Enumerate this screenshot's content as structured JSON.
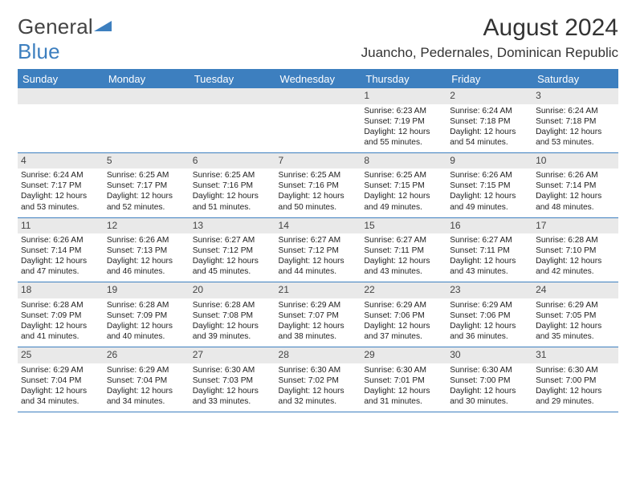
{
  "logo": {
    "text1": "General",
    "text2": "Blue",
    "mark_color": "#3d7fbf"
  },
  "title": "August 2024",
  "location": "Juancho, Pedernales, Dominican Republic",
  "colors": {
    "header_bg": "#3d7fbf",
    "header_fg": "#ffffff",
    "daynum_bg": "#e9e9e9",
    "border": "#3d7fbf",
    "text": "#222222",
    "background": "#ffffff"
  },
  "typography": {
    "title_fontsize": 30,
    "location_fontsize": 17,
    "dow_fontsize": 13,
    "daynum_fontsize": 12,
    "info_fontsize": 10.2,
    "logo_fontsize": 26
  },
  "dow": [
    "Sunday",
    "Monday",
    "Tuesday",
    "Wednesday",
    "Thursday",
    "Friday",
    "Saturday"
  ],
  "weeks": [
    [
      null,
      null,
      null,
      null,
      {
        "n": "1",
        "sunrise": "6:23 AM",
        "sunset": "7:19 PM",
        "daylight": "12 hours and 55 minutes."
      },
      {
        "n": "2",
        "sunrise": "6:24 AM",
        "sunset": "7:18 PM",
        "daylight": "12 hours and 54 minutes."
      },
      {
        "n": "3",
        "sunrise": "6:24 AM",
        "sunset": "7:18 PM",
        "daylight": "12 hours and 53 minutes."
      }
    ],
    [
      {
        "n": "4",
        "sunrise": "6:24 AM",
        "sunset": "7:17 PM",
        "daylight": "12 hours and 53 minutes."
      },
      {
        "n": "5",
        "sunrise": "6:25 AM",
        "sunset": "7:17 PM",
        "daylight": "12 hours and 52 minutes."
      },
      {
        "n": "6",
        "sunrise": "6:25 AM",
        "sunset": "7:16 PM",
        "daylight": "12 hours and 51 minutes."
      },
      {
        "n": "7",
        "sunrise": "6:25 AM",
        "sunset": "7:16 PM",
        "daylight": "12 hours and 50 minutes."
      },
      {
        "n": "8",
        "sunrise": "6:25 AM",
        "sunset": "7:15 PM",
        "daylight": "12 hours and 49 minutes."
      },
      {
        "n": "9",
        "sunrise": "6:26 AM",
        "sunset": "7:15 PM",
        "daylight": "12 hours and 49 minutes."
      },
      {
        "n": "10",
        "sunrise": "6:26 AM",
        "sunset": "7:14 PM",
        "daylight": "12 hours and 48 minutes."
      }
    ],
    [
      {
        "n": "11",
        "sunrise": "6:26 AM",
        "sunset": "7:14 PM",
        "daylight": "12 hours and 47 minutes."
      },
      {
        "n": "12",
        "sunrise": "6:26 AM",
        "sunset": "7:13 PM",
        "daylight": "12 hours and 46 minutes."
      },
      {
        "n": "13",
        "sunrise": "6:27 AM",
        "sunset": "7:12 PM",
        "daylight": "12 hours and 45 minutes."
      },
      {
        "n": "14",
        "sunrise": "6:27 AM",
        "sunset": "7:12 PM",
        "daylight": "12 hours and 44 minutes."
      },
      {
        "n": "15",
        "sunrise": "6:27 AM",
        "sunset": "7:11 PM",
        "daylight": "12 hours and 43 minutes."
      },
      {
        "n": "16",
        "sunrise": "6:27 AM",
        "sunset": "7:11 PM",
        "daylight": "12 hours and 43 minutes."
      },
      {
        "n": "17",
        "sunrise": "6:28 AM",
        "sunset": "7:10 PM",
        "daylight": "12 hours and 42 minutes."
      }
    ],
    [
      {
        "n": "18",
        "sunrise": "6:28 AM",
        "sunset": "7:09 PM",
        "daylight": "12 hours and 41 minutes."
      },
      {
        "n": "19",
        "sunrise": "6:28 AM",
        "sunset": "7:09 PM",
        "daylight": "12 hours and 40 minutes."
      },
      {
        "n": "20",
        "sunrise": "6:28 AM",
        "sunset": "7:08 PM",
        "daylight": "12 hours and 39 minutes."
      },
      {
        "n": "21",
        "sunrise": "6:29 AM",
        "sunset": "7:07 PM",
        "daylight": "12 hours and 38 minutes."
      },
      {
        "n": "22",
        "sunrise": "6:29 AM",
        "sunset": "7:06 PM",
        "daylight": "12 hours and 37 minutes."
      },
      {
        "n": "23",
        "sunrise": "6:29 AM",
        "sunset": "7:06 PM",
        "daylight": "12 hours and 36 minutes."
      },
      {
        "n": "24",
        "sunrise": "6:29 AM",
        "sunset": "7:05 PM",
        "daylight": "12 hours and 35 minutes."
      }
    ],
    [
      {
        "n": "25",
        "sunrise": "6:29 AM",
        "sunset": "7:04 PM",
        "daylight": "12 hours and 34 minutes."
      },
      {
        "n": "26",
        "sunrise": "6:29 AM",
        "sunset": "7:04 PM",
        "daylight": "12 hours and 34 minutes."
      },
      {
        "n": "27",
        "sunrise": "6:30 AM",
        "sunset": "7:03 PM",
        "daylight": "12 hours and 33 minutes."
      },
      {
        "n": "28",
        "sunrise": "6:30 AM",
        "sunset": "7:02 PM",
        "daylight": "12 hours and 32 minutes."
      },
      {
        "n": "29",
        "sunrise": "6:30 AM",
        "sunset": "7:01 PM",
        "daylight": "12 hours and 31 minutes."
      },
      {
        "n": "30",
        "sunrise": "6:30 AM",
        "sunset": "7:00 PM",
        "daylight": "12 hours and 30 minutes."
      },
      {
        "n": "31",
        "sunrise": "6:30 AM",
        "sunset": "7:00 PM",
        "daylight": "12 hours and 29 minutes."
      }
    ]
  ]
}
